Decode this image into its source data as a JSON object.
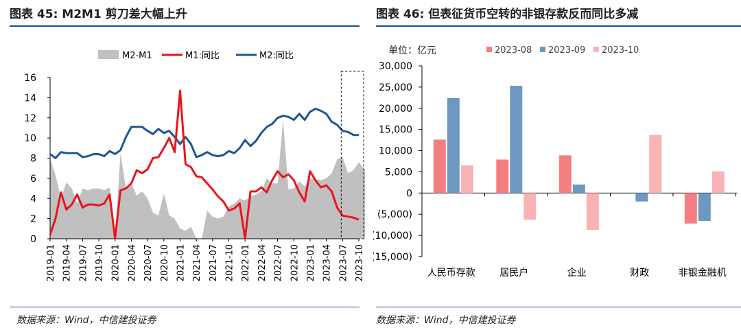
{
  "left": {
    "title": "图表 45: M2M1 剪刀差大幅上升",
    "source": "数据来源：Wind，中信建投证券",
    "chart_data": {
      "type": "line",
      "title": "M2M1 剪刀差大幅上升",
      "legend": [
        "M2-M1",
        "M1:同比",
        "M2:同比"
      ],
      "legend_position": "top",
      "ylim": [
        0,
        16
      ],
      "yticks": [
        "0",
        "2",
        "4",
        "6",
        "8",
        "10",
        "12",
        "14",
        "16"
      ],
      "xticks": [
        "2019-01",
        "2019-04",
        "2019-07",
        "2019-10",
        "2020-01",
        "2020-04",
        "2020-07",
        "2020-10",
        "2021-01",
        "2021-04",
        "2021-07",
        "2021-10",
        "2022-01",
        "2022-04",
        "2022-07",
        "2022-10",
        "2023-01",
        "2023-04",
        "2023-07",
        "2023-10"
      ],
      "highlight_from": "2023-07",
      "series": [
        {
          "name": "M2-M1",
          "kind": "area",
          "color": "#c0c0c0",
          "values": [
            8.0,
            6.3,
            4.0,
            5.6,
            5.0,
            3.5,
            5.0,
            4.8,
            5.0,
            5.0,
            4.8,
            5.1,
            0.0,
            8.5,
            5.0,
            5.5,
            4.3,
            4.7,
            4.0,
            2.6,
            2.3,
            4.5,
            2.3,
            2.0,
            1.0,
            0.8,
            1.2,
            0.0,
            0.0,
            2.8,
            2.2,
            2.0,
            2.2,
            3.2,
            3.5,
            4.0,
            3.8,
            4.2,
            4.4,
            4.7,
            6.0,
            5.5,
            5.5,
            11.8,
            4.9,
            5.0,
            5.7,
            5.2,
            6.0,
            5.9,
            5.8,
            6.0,
            6.5,
            7.9,
            8.1,
            6.5,
            6.8,
            7.6,
            6.9,
            6.9,
            7.8,
            8.3,
            8.4,
            8.3,
            8.4
          ]
        },
        {
          "name": "M1:同比",
          "kind": "line",
          "color": "#e8141c",
          "values": [
            0.4,
            2.0,
            4.6,
            2.9,
            3.4,
            4.4,
            3.1,
            3.4,
            3.4,
            3.3,
            3.5,
            4.4,
            0.0,
            4.8,
            5.0,
            5.5,
            6.8,
            6.5,
            6.9,
            8.0,
            8.1,
            9.0,
            10.0,
            8.6,
            14.7,
            7.4,
            7.1,
            6.2,
            6.1,
            5.5,
            4.9,
            4.2,
            3.7,
            2.8,
            3.0,
            3.5,
            0.0,
            4.7,
            4.7,
            5.1,
            4.6,
            5.8,
            6.7,
            6.1,
            6.4,
            5.8,
            4.6,
            3.7,
            6.7,
            5.8,
            5.1,
            5.3,
            4.7,
            3.1,
            2.3,
            2.2,
            2.1,
            1.9
          ]
        },
        {
          "name": "M2:同比",
          "kind": "line",
          "color": "#1f5591",
          "values": [
            8.4,
            8.0,
            8.6,
            8.5,
            8.5,
            8.5,
            8.1,
            8.2,
            8.4,
            8.4,
            8.2,
            8.7,
            8.4,
            8.8,
            10.1,
            11.1,
            11.1,
            11.1,
            10.7,
            10.4,
            10.9,
            10.5,
            10.7,
            10.1,
            9.4,
            10.1,
            9.4,
            8.1,
            8.3,
            8.6,
            8.3,
            8.2,
            8.3,
            8.7,
            8.5,
            9.0,
            9.8,
            9.2,
            9.7,
            10.5,
            11.1,
            11.4,
            12.0,
            12.2,
            12.1,
            11.8,
            12.4,
            11.8,
            12.6,
            12.9,
            12.7,
            12.4,
            11.6,
            11.3,
            10.7,
            10.6,
            10.3,
            10.3
          ]
        }
      ]
    }
  },
  "right": {
    "title": "图表 46: 但表征货币空转的非银存款反而同比多减",
    "source": "数据来源：Wind，中信建投证券",
    "unit_label": "单位：亿元",
    "chart_data": {
      "type": "bar",
      "title": "但表征货币空转的非银存款反而同比多减",
      "categories": [
        "人民币存款",
        "居民户",
        "企业",
        "财政",
        "非银金融机构"
      ],
      "category_labels": [
        "人民币存款",
        "居民户",
        "企业",
        "财政",
        "非银金融机"
      ],
      "ylabel": "亿元",
      "ylim": [
        -15000,
        30000
      ],
      "yticks": [
        "(15,000)",
        "(10,000)",
        "(5,000)",
        "0",
        "5,000",
        "10,000",
        "15,000",
        "20,000",
        "25,000",
        "30,000"
      ],
      "legend_position": "top",
      "series": [
        {
          "name": "2023-08",
          "color": "#f47f82",
          "values": [
            12600,
            7900,
            8900,
            0,
            -7200
          ]
        },
        {
          "name": "2023-09",
          "color": "#6e98c0",
          "values": [
            22400,
            25300,
            2000,
            -2000,
            -6600
          ]
        },
        {
          "name": "2023-10",
          "color": "#f9b2b5",
          "values": [
            6500,
            -6300,
            -8700,
            13700,
            5100
          ]
        }
      ]
    }
  }
}
